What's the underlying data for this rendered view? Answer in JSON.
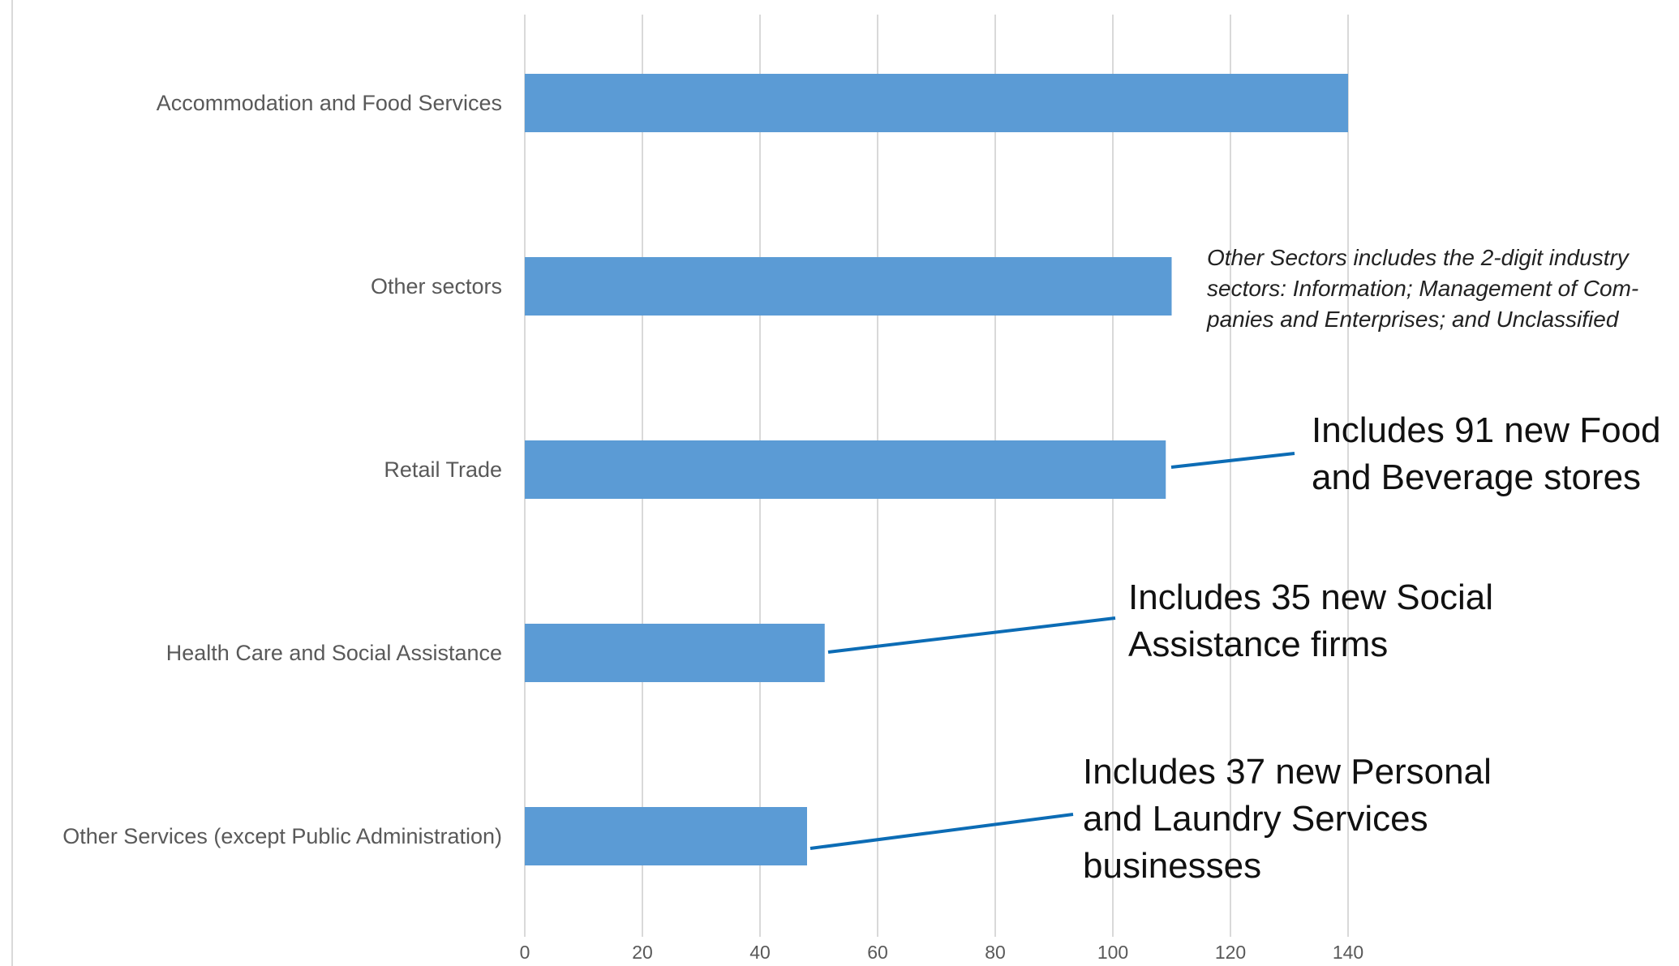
{
  "chart_data": {
    "type": "bar",
    "orientation": "horizontal",
    "categories": [
      "Accommodation and Food Services",
      "Other sectors",
      "Retail Trade",
      "Health Care and Social Assistance",
      "Other Services (except Public Administration)"
    ],
    "values": [
      140,
      110,
      109,
      51,
      48
    ],
    "xlim": [
      0,
      150
    ],
    "xticks": [
      0,
      20,
      40,
      60,
      80,
      100,
      120,
      140
    ],
    "grid": true,
    "legend": "none",
    "bar_color": "#5b9bd5",
    "title": "",
    "xlabel": "",
    "ylabel": "",
    "annotations": [
      {
        "id": "other-sectors-note",
        "lines": [
          "Other Sectors includes the 2-digit industry",
          "sectors: Information; Management of Com-",
          "panies and Enterprises; and Unclassified"
        ]
      },
      {
        "id": "retail-callout",
        "target": "Retail Trade",
        "lines": [
          "Includes 91 new Food",
          "and Beverage stores"
        ]
      },
      {
        "id": "health-callout",
        "target": "Health Care and Social Assistance",
        "lines": [
          "Includes 35 new Social",
          "Assistance firms"
        ]
      },
      {
        "id": "services-callout",
        "target": "Other Services (except Public Administration)",
        "lines": [
          "Includes 37 new Personal",
          "and Laundry Services",
          "businesses"
        ]
      }
    ],
    "leader_color": "#0c6cb5"
  }
}
